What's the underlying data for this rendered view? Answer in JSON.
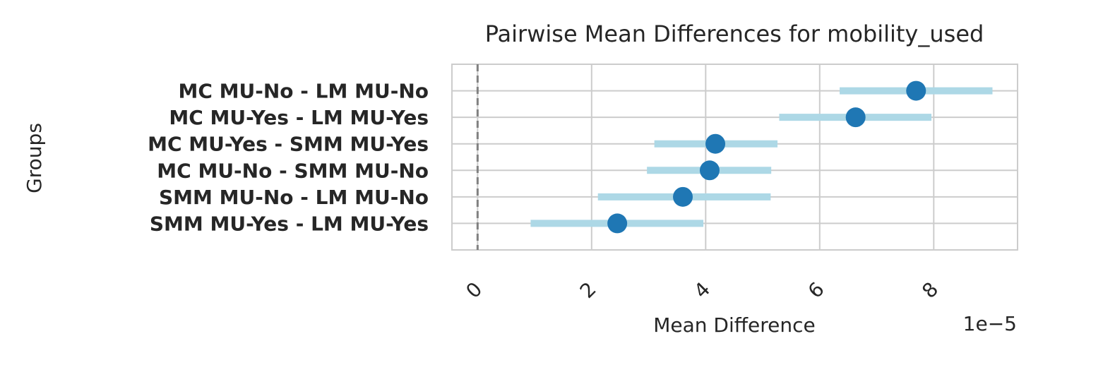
{
  "chart_data": {
    "type": "interval",
    "title": "Pairwise Mean Differences for mobility_used",
    "x_label": "Mean Difference",
    "y_label": "Groups",
    "x_offset_label": "1e−5",
    "categories": [
      "MC MU-No - LM MU-No",
      "MC MU-Yes - LM MU-Yes",
      "MC MU-Yes - SMM MU-Yes",
      "MC MU-No - SMM MU-No",
      "SMM MU-No - LM MU-No",
      "SMM MU-Yes - LM MU-Yes"
    ],
    "values": [
      7.69,
      6.63,
      4.17,
      4.07,
      3.6,
      2.45
    ],
    "lower": [
      6.35,
      5.29,
      3.1,
      2.97,
      2.11,
      0.93
    ],
    "upper": [
      9.03,
      7.96,
      5.26,
      5.15,
      5.14,
      3.96
    ],
    "point_color": "#1f77b4",
    "interval_color": "#add8e6",
    "reference_line": 0,
    "xlim": [
      -0.45,
      9.47
    ],
    "xticks": [
      0,
      2,
      4,
      6,
      8
    ],
    "grid": true
  }
}
